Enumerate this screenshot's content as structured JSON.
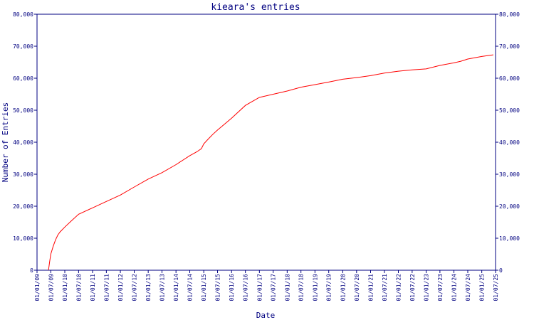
{
  "chart_data": {
    "type": "line",
    "title": "kieara's entries",
    "xlabel": "Date",
    "ylabel": "Number of Entries",
    "ylim": [
      0,
      80000
    ],
    "xlim": [
      "2009-01-01",
      "2025-07-01"
    ],
    "grid": false,
    "legend": "none",
    "y_ticks": [
      {
        "value": 0,
        "label": "0"
      },
      {
        "value": 10000,
        "label": "10,000"
      },
      {
        "value": 20000,
        "label": "20,000"
      },
      {
        "value": 30000,
        "label": "30,000"
      },
      {
        "value": 40000,
        "label": "40,000"
      },
      {
        "value": 50000,
        "label": "50,000"
      },
      {
        "value": 60000,
        "label": "60,000"
      },
      {
        "value": 70000,
        "label": "70,000"
      },
      {
        "value": 80000,
        "label": "80,000"
      }
    ],
    "x_ticks": [
      {
        "date": "2009-01-01",
        "label": "01/01/09"
      },
      {
        "date": "2009-07-01",
        "label": "01/07/09"
      },
      {
        "date": "2010-01-01",
        "label": "01/01/10"
      },
      {
        "date": "2010-07-01",
        "label": "01/07/10"
      },
      {
        "date": "2011-01-01",
        "label": "01/01/11"
      },
      {
        "date": "2011-07-01",
        "label": "01/07/11"
      },
      {
        "date": "2012-01-01",
        "label": "01/01/12"
      },
      {
        "date": "2012-07-01",
        "label": "01/07/12"
      },
      {
        "date": "2013-01-01",
        "label": "01/01/13"
      },
      {
        "date": "2013-07-01",
        "label": "01/07/13"
      },
      {
        "date": "2014-01-01",
        "label": "01/01/14"
      },
      {
        "date": "2014-07-01",
        "label": "01/07/14"
      },
      {
        "date": "2015-01-01",
        "label": "01/01/15"
      },
      {
        "date": "2015-07-01",
        "label": "01/07/15"
      },
      {
        "date": "2016-01-01",
        "label": "01/01/16"
      },
      {
        "date": "2016-07-01",
        "label": "01/07/16"
      },
      {
        "date": "2017-01-01",
        "label": "01/01/17"
      },
      {
        "date": "2017-07-01",
        "label": "01/07/17"
      },
      {
        "date": "2018-01-01",
        "label": "01/01/18"
      },
      {
        "date": "2018-07-01",
        "label": "01/07/18"
      },
      {
        "date": "2019-01-01",
        "label": "01/01/19"
      },
      {
        "date": "2019-07-01",
        "label": "01/07/19"
      },
      {
        "date": "2020-01-01",
        "label": "01/01/20"
      },
      {
        "date": "2020-07-01",
        "label": "01/07/20"
      },
      {
        "date": "2021-01-01",
        "label": "01/01/21"
      },
      {
        "date": "2021-07-01",
        "label": "01/07/21"
      },
      {
        "date": "2022-01-01",
        "label": "01/01/22"
      },
      {
        "date": "2022-07-01",
        "label": "01/07/22"
      },
      {
        "date": "2023-01-01",
        "label": "01/01/23"
      },
      {
        "date": "2023-07-01",
        "label": "01/07/23"
      },
      {
        "date": "2024-01-01",
        "label": "01/01/24"
      },
      {
        "date": "2024-07-01",
        "label": "01/07/24"
      },
      {
        "date": "2025-01-01",
        "label": "01/01/25"
      },
      {
        "date": "2025-07-01",
        "label": "01/07/25"
      }
    ],
    "series": [
      {
        "color": "#ff0000",
        "points": [
          {
            "x": "2009-06-01",
            "y": 0
          },
          {
            "x": "2009-06-15",
            "y": 2500
          },
          {
            "x": "2009-07-01",
            "y": 5000
          },
          {
            "x": "2009-08-01",
            "y": 7500
          },
          {
            "x": "2009-09-01",
            "y": 9500
          },
          {
            "x": "2009-10-01",
            "y": 11000
          },
          {
            "x": "2009-11-01",
            "y": 12000
          },
          {
            "x": "2010-01-01",
            "y": 13500
          },
          {
            "x": "2010-04-01",
            "y": 15500
          },
          {
            "x": "2010-07-01",
            "y": 17500
          },
          {
            "x": "2011-01-01",
            "y": 19500
          },
          {
            "x": "2011-07-01",
            "y": 21500
          },
          {
            "x": "2012-01-01",
            "y": 23500
          },
          {
            "x": "2012-07-01",
            "y": 26000
          },
          {
            "x": "2013-01-01",
            "y": 28500
          },
          {
            "x": "2013-07-01",
            "y": 30500
          },
          {
            "x": "2014-01-01",
            "y": 33000
          },
          {
            "x": "2014-07-01",
            "y": 35800
          },
          {
            "x": "2014-10-01",
            "y": 37000
          },
          {
            "x": "2014-12-01",
            "y": 38000
          },
          {
            "x": "2015-01-01",
            "y": 39500
          },
          {
            "x": "2015-03-01",
            "y": 41000
          },
          {
            "x": "2015-05-01",
            "y": 42500
          },
          {
            "x": "2015-07-01",
            "y": 43800
          },
          {
            "x": "2016-01-01",
            "y": 47500
          },
          {
            "x": "2016-07-01",
            "y": 51500
          },
          {
            "x": "2017-01-01",
            "y": 54000
          },
          {
            "x": "2017-07-01",
            "y": 55000
          },
          {
            "x": "2018-01-01",
            "y": 56000
          },
          {
            "x": "2018-07-01",
            "y": 57200
          },
          {
            "x": "2019-01-01",
            "y": 58000
          },
          {
            "x": "2019-07-01",
            "y": 58800
          },
          {
            "x": "2020-01-01",
            "y": 59700
          },
          {
            "x": "2020-07-01",
            "y": 60200
          },
          {
            "x": "2021-01-01",
            "y": 60800
          },
          {
            "x": "2021-07-01",
            "y": 61600
          },
          {
            "x": "2022-01-01",
            "y": 62200
          },
          {
            "x": "2022-07-01",
            "y": 62600
          },
          {
            "x": "2023-01-01",
            "y": 62900
          },
          {
            "x": "2023-07-01",
            "y": 64000
          },
          {
            "x": "2024-01-01",
            "y": 64800
          },
          {
            "x": "2024-04-01",
            "y": 65300
          },
          {
            "x": "2024-07-01",
            "y": 66000
          },
          {
            "x": "2025-01-01",
            "y": 66800
          },
          {
            "x": "2025-06-01",
            "y": 67300
          }
        ]
      }
    ]
  }
}
